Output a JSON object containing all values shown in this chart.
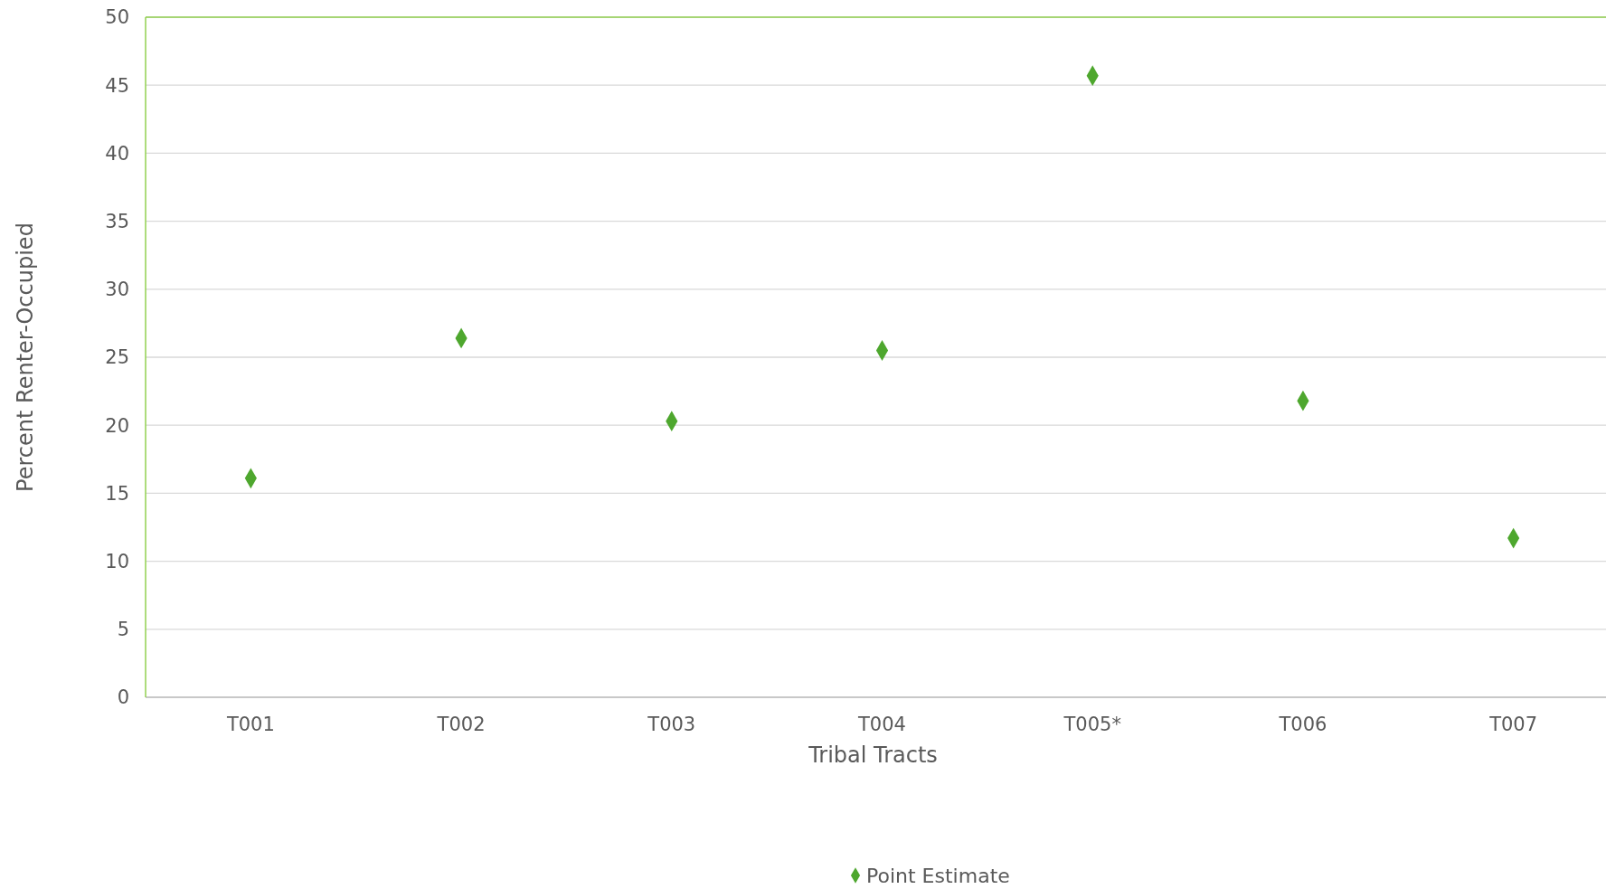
{
  "chart_data": {
    "type": "scatter",
    "xlabel": "Tribal Tracts",
    "ylabel": "Percent Renter-Occupied",
    "categories": [
      "T001",
      "T002",
      "T003",
      "T004",
      "T005*",
      "T006",
      "T007"
    ],
    "series": [
      {
        "name": "Point Estimate",
        "color": "#4ea72e",
        "values": [
          16.1,
          26.4,
          20.3,
          25.5,
          45.7,
          21.8,
          11.7
        ]
      }
    ],
    "ylim": [
      0,
      50
    ],
    "yticks": [
      0,
      5,
      10,
      15,
      20,
      25,
      30,
      35,
      40,
      45,
      50
    ],
    "grid": "y",
    "legend": "bottom",
    "marker": "diamond"
  }
}
